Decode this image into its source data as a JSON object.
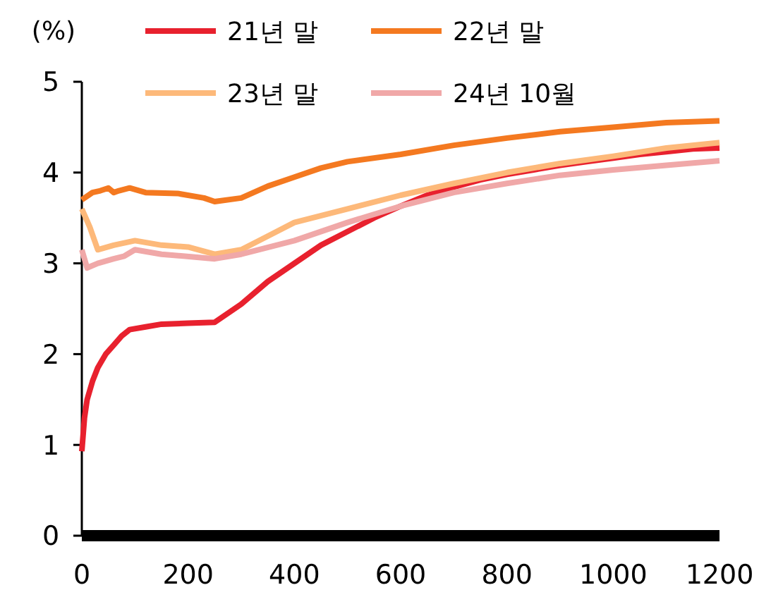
{
  "chart_data": {
    "type": "line",
    "ylabel": "(%)",
    "xlim": [
      0,
      1200
    ],
    "ylim": [
      0,
      5
    ],
    "xticks": [
      0,
      200,
      400,
      600,
      800,
      1000,
      1200
    ],
    "yticks": [
      0,
      1,
      2,
      3,
      4,
      5
    ],
    "grid": false,
    "legend": "top",
    "marker": "none",
    "line_style": "solid",
    "series": [
      {
        "name": "21년 말",
        "color": "#e8212e",
        "x": [
          0,
          5,
          10,
          20,
          30,
          45,
          60,
          75,
          90,
          120,
          150,
          200,
          250,
          300,
          350,
          400,
          450,
          500,
          550,
          600,
          650,
          700,
          750,
          800,
          850,
          900,
          950,
          1000,
          1050,
          1100,
          1150,
          1200
        ],
        "values": [
          0.93,
          1.3,
          1.5,
          1.7,
          1.85,
          2.0,
          2.1,
          2.2,
          2.27,
          2.3,
          2.33,
          2.34,
          2.35,
          2.55,
          2.8,
          3.0,
          3.2,
          3.35,
          3.5,
          3.63,
          3.75,
          3.84,
          3.92,
          3.98,
          4.03,
          4.08,
          4.12,
          4.16,
          4.2,
          4.23,
          4.26,
          4.27
        ]
      },
      {
        "name": "22년 말",
        "color": "#f47920",
        "x": [
          0,
          20,
          35,
          50,
          60,
          70,
          90,
          120,
          180,
          230,
          250,
          300,
          350,
          400,
          450,
          500,
          600,
          700,
          800,
          900,
          1000,
          1100,
          1200
        ],
        "values": [
          3.7,
          3.78,
          3.8,
          3.83,
          3.78,
          3.8,
          3.83,
          3.78,
          3.77,
          3.72,
          3.68,
          3.72,
          3.85,
          3.95,
          4.05,
          4.12,
          4.2,
          4.3,
          4.38,
          4.45,
          4.5,
          4.55,
          4.57
        ]
      },
      {
        "name": "23년 말",
        "color": "#fdb97a",
        "x": [
          0,
          15,
          30,
          60,
          100,
          150,
          200,
          250,
          300,
          350,
          400,
          500,
          600,
          700,
          800,
          900,
          1000,
          1100,
          1200
        ],
        "values": [
          3.6,
          3.4,
          3.15,
          3.2,
          3.25,
          3.2,
          3.18,
          3.1,
          3.15,
          3.3,
          3.45,
          3.6,
          3.75,
          3.88,
          4.0,
          4.1,
          4.18,
          4.27,
          4.33
        ]
      },
      {
        "name": "24년 10월",
        "color": "#f0a8a8",
        "x": [
          0,
          10,
          30,
          60,
          80,
          100,
          150,
          250,
          300,
          400,
          500,
          600,
          700,
          800,
          900,
          1000,
          1100,
          1200
        ],
        "values": [
          3.15,
          2.95,
          3.0,
          3.05,
          3.08,
          3.15,
          3.1,
          3.05,
          3.1,
          3.25,
          3.45,
          3.63,
          3.78,
          3.88,
          3.97,
          4.03,
          4.08,
          4.13
        ]
      }
    ]
  }
}
